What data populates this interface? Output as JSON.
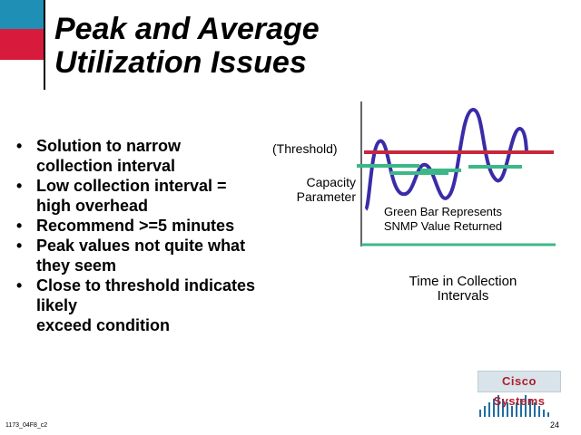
{
  "slide": {
    "title_lines": [
      "Peak and Average",
      "Utilization Issues"
    ],
    "bullets": [
      "Solution to narrow\ncollection interval",
      "Low collection interval =\nhigh overhead",
      "Recommend >=5 minutes",
      "Peak values not quite what\nthey seem",
      "Close to threshold indicates\nlikely\nexceed condition"
    ],
    "bullet_glyph": "•"
  },
  "diagram": {
    "threshold_label": "(Threshold)",
    "capacity_label": "Capacity\nParameter",
    "green_bar_label": "Green Bar Represents\nSNMP Value Returned",
    "time_label": "Time in Collection\nIntervals",
    "colors": {
      "threshold": "#c8283c",
      "curve": "#3a2ca8",
      "bars": "#3cb887",
      "baseline": "#3cb887",
      "axis": "#000000"
    }
  },
  "logo": {
    "text": "Cisco Systems"
  },
  "footer": {
    "left": "1173_04F8_c2",
    "page": "24"
  },
  "colors": {
    "accent_blue": "#1f8fb5",
    "accent_red": "#d81a3c"
  }
}
